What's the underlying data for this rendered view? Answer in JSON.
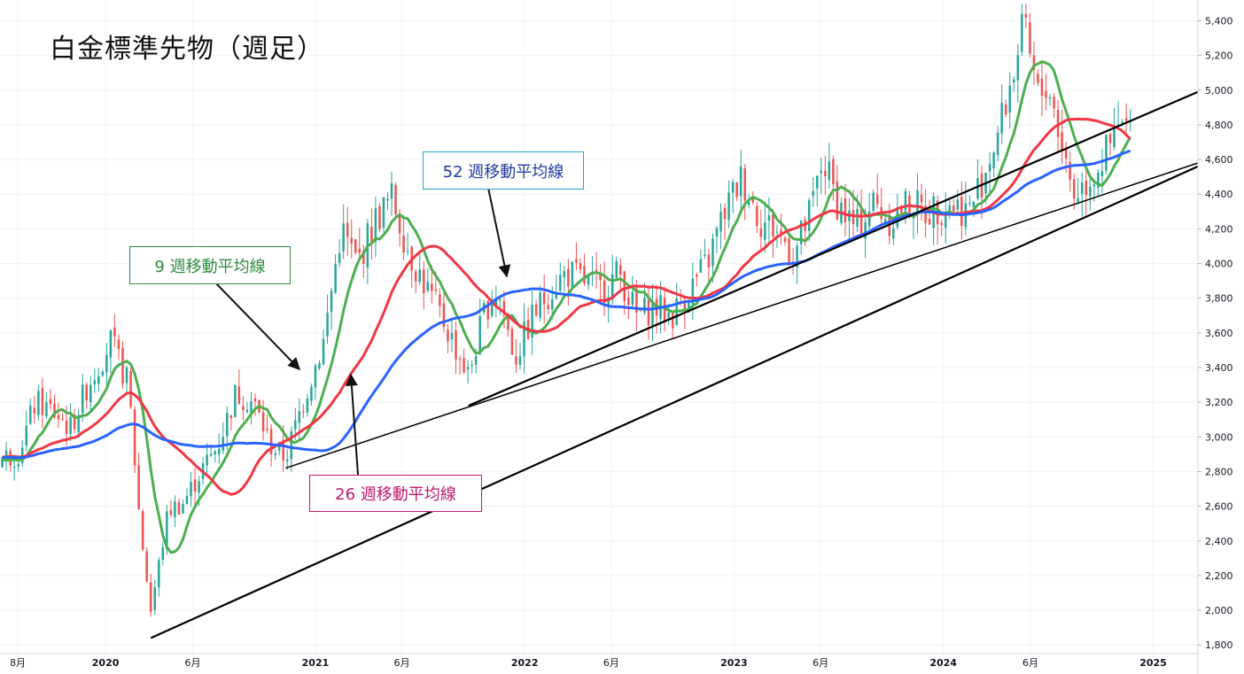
{
  "title": "白金標準先物（週足）",
  "labels": {
    "ma9": "9 週移動平均線",
    "ma26": "26 週移動平均線",
    "ma52": "52 週移動平均線"
  },
  "colors": {
    "up": "#26a69a",
    "down": "#ef5350",
    "ma9": "#4caf50",
    "ma26": "#f23645",
    "ma52": "#2962ff",
    "trendline": "#000000",
    "grid": "#f0f3fa"
  },
  "chart_data": {
    "type": "candlestick",
    "interval": "weekly",
    "ylim": [
      1750,
      5520
    ],
    "y_ticks": [
      1800,
      2000,
      2200,
      2400,
      2600,
      2800,
      3000,
      3200,
      3400,
      3600,
      3800,
      4000,
      4200,
      4400,
      4600,
      4800,
      5000,
      5200,
      5400
    ],
    "y_tick_labels": [
      "1,800",
      "2,000",
      "2,200",
      "2,400",
      "2,600",
      "2,800",
      "3,000",
      "3,200",
      "3,400",
      "3,600",
      "3,800",
      "4,000",
      "4,200",
      "4,400",
      "4,600",
      "4,800",
      "5,000",
      "5,200",
      "5,400"
    ],
    "x_range": [
      "2019-07-01",
      "2025-03-20"
    ],
    "x_ticks": [
      {
        "date": "2019-08-01",
        "label": "8月"
      },
      {
        "date": "2020-01-01",
        "label": "2020"
      },
      {
        "date": "2020-06-01",
        "label": "6月"
      },
      {
        "date": "2021-01-01",
        "label": "2021"
      },
      {
        "date": "2021-06-01",
        "label": "6月"
      },
      {
        "date": "2022-01-01",
        "label": "2022"
      },
      {
        "date": "2022-06-01",
        "label": "6月"
      },
      {
        "date": "2023-01-01",
        "label": "2023"
      },
      {
        "date": "2023-06-01",
        "label": "6月"
      },
      {
        "date": "2024-01-01",
        "label": "2024"
      },
      {
        "date": "2024-06-01",
        "label": "6月"
      },
      {
        "date": "2025-01-01",
        "label": "2025"
      }
    ],
    "close_series": [
      [
        "2019-07-01",
        2880
      ],
      [
        "2019-08-01",
        2900
      ],
      [
        "2019-09-01",
        3200
      ],
      [
        "2019-10-01",
        3150
      ],
      [
        "2019-11-01",
        3050
      ],
      [
        "2019-12-01",
        3300
      ],
      [
        "2020-01-10",
        3550
      ],
      [
        "2020-02-10",
        3300
      ],
      [
        "2020-03-01",
        2500
      ],
      [
        "2020-03-20",
        2000
      ],
      [
        "2020-04-20",
        2580
      ],
      [
        "2020-05-15",
        2620
      ],
      [
        "2020-06-15",
        2800
      ],
      [
        "2020-07-15",
        2950
      ],
      [
        "2020-08-15",
        3250
      ],
      [
        "2020-09-15",
        3200
      ],
      [
        "2020-10-15",
        2950
      ],
      [
        "2020-11-10",
        2880
      ],
      [
        "2020-12-15",
        3250
      ],
      [
        "2021-01-15",
        3550
      ],
      [
        "2021-02-15",
        4200
      ],
      [
        "2021-03-15",
        4000
      ],
      [
        "2021-04-15",
        4250
      ],
      [
        "2021-05-15",
        4380
      ],
      [
        "2021-06-15",
        4050
      ],
      [
        "2021-07-15",
        3850
      ],
      [
        "2021-08-15",
        3650
      ],
      [
        "2021-09-25",
        3350
      ],
      [
        "2021-10-25",
        3750
      ],
      [
        "2021-11-15",
        3850
      ],
      [
        "2021-12-15",
        3450
      ],
      [
        "2022-01-15",
        3700
      ],
      [
        "2022-02-15",
        3850
      ],
      [
        "2022-03-15",
        3950
      ],
      [
        "2022-04-15",
        3900
      ],
      [
        "2022-05-15",
        3850
      ],
      [
        "2022-06-15",
        3950
      ],
      [
        "2022-07-15",
        3700
      ],
      [
        "2022-08-15",
        3750
      ],
      [
        "2022-09-15",
        3700
      ],
      [
        "2022-10-15",
        3850
      ],
      [
        "2022-11-15",
        4000
      ],
      [
        "2022-12-15",
        4300
      ],
      [
        "2023-01-15",
        4500
      ],
      [
        "2023-02-15",
        4250
      ],
      [
        "2023-03-15",
        4200
      ],
      [
        "2023-04-15",
        4050
      ],
      [
        "2023-05-15",
        4300
      ],
      [
        "2023-06-05",
        4600
      ],
      [
        "2023-07-01",
        4350
      ],
      [
        "2023-08-01",
        4200
      ],
      [
        "2023-09-01",
        4350
      ],
      [
        "2023-10-01",
        4250
      ],
      [
        "2023-11-01",
        4350
      ],
      [
        "2023-12-01",
        4300
      ],
      [
        "2024-01-15",
        4350
      ],
      [
        "2024-02-15",
        4300
      ],
      [
        "2024-03-15",
        4550
      ],
      [
        "2024-04-10",
        4800
      ],
      [
        "2024-05-01",
        5100
      ],
      [
        "2024-05-20",
        5350
      ],
      [
        "2024-06-15",
        4950
      ],
      [
        "2024-07-01",
        5050
      ],
      [
        "2024-07-25",
        4700
      ],
      [
        "2024-08-15",
        4400
      ],
      [
        "2024-09-15",
        4500
      ],
      [
        "2024-10-15",
        4650
      ],
      [
        "2024-11-05",
        4800
      ],
      [
        "2024-11-25",
        4750
      ]
    ],
    "series": [
      {
        "name": "9 週移動平均線",
        "length_weeks": 9
      },
      {
        "name": "26 週移動平均線",
        "length_weeks": 26
      },
      {
        "name": "52 週移動平均線",
        "length_weeks": 52
      }
    ],
    "trendlines": [
      {
        "from": [
          "2020-03-20",
          1840
        ],
        "to": [
          "2025-03-20",
          4560
        ]
      },
      {
        "from": [
          "2020-11-10",
          2820
        ],
        "to": [
          "2025-03-20",
          4580
        ]
      },
      {
        "from": [
          "2021-09-25",
          3180
        ],
        "to": [
          "2025-03-20",
          4990
        ]
      }
    ],
    "grid": true
  }
}
